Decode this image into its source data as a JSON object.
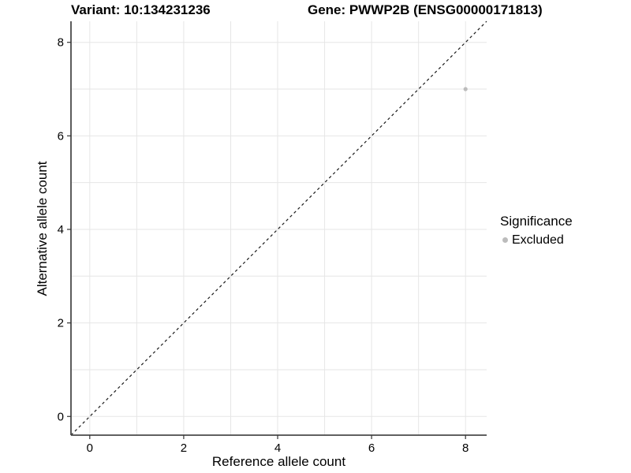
{
  "chart_data": {
    "type": "scatter",
    "title_left": "Variant: 10:134231236",
    "title_right": "Gene: PWWP2B (ENSG00000171813)",
    "xlabel": "Reference allele count",
    "ylabel": "Alternative allele count",
    "xlim": [
      -0.4,
      8.45
    ],
    "ylim": [
      -0.4,
      8.45
    ],
    "x_ticks": [
      0,
      2,
      4,
      6,
      8
    ],
    "y_ticks": [
      0,
      2,
      4,
      6,
      8
    ],
    "x_gridlines": [
      0,
      1,
      2,
      3,
      4,
      5,
      6,
      7,
      8
    ],
    "y_gridlines": [
      0,
      1,
      2,
      3,
      4,
      5,
      6,
      7,
      8
    ],
    "grid": true,
    "points": [
      {
        "x": 8,
        "y": 7,
        "series": "Excluded"
      }
    ],
    "reference_line": {
      "type": "identity",
      "style": "dashed",
      "color": "#1a1a1a"
    },
    "legend": {
      "title": "Significance",
      "position": "right",
      "entries": [
        {
          "label": "Excluded",
          "color": "#bcbcbc",
          "marker": "circle"
        }
      ]
    },
    "colors": {
      "point": "#bcbcbc",
      "grid": "#e6e6e6",
      "axis_line": "#4a4a4a",
      "tick": "#333333",
      "text": "#000000",
      "background": "#ffffff"
    }
  }
}
